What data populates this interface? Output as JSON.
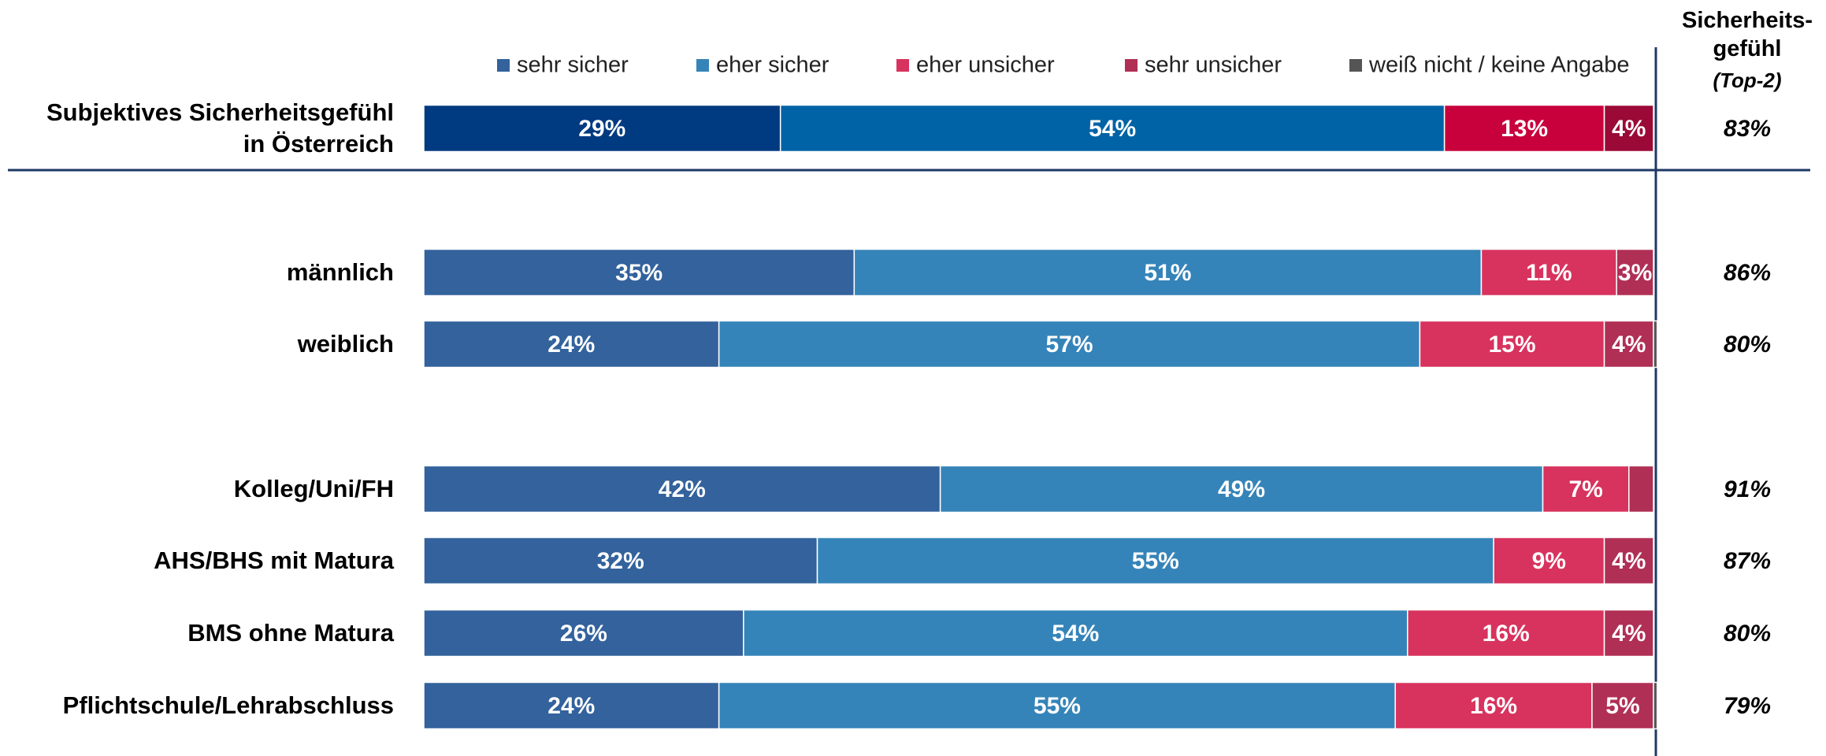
{
  "chart_data": {
    "type": "stacked-bar-horizontal",
    "categories": [
      "Subjektives Sicherheitsgefühl\nin Österreich",
      "männlich",
      "weiblich",
      "Kolleg/Uni/FH",
      "AHS/BHS mit Matura",
      "BMS ohne Matura",
      "Pflichtschule/Lehrabschluss"
    ],
    "xlim": [
      0,
      100
    ],
    "series": [
      {
        "name": "sehr sicher",
        "color": "#33629c",
        "first_row_color": "#003a80",
        "values": [
          29,
          35,
          24,
          42,
          32,
          26,
          24
        ],
        "value_labels": [
          "29%",
          "35%",
          "24%",
          "42%",
          "32%",
          "26%",
          "24%"
        ]
      },
      {
        "name": "eher sicher",
        "color": "#3584b9",
        "first_row_color": "#0063a6",
        "values": [
          54,
          51,
          57,
          49,
          55,
          54,
          55
        ],
        "value_labels": [
          "54%",
          "51%",
          "57%",
          "49%",
          "55%",
          "54%",
          "55%"
        ]
      },
      {
        "name": "eher unsicher",
        "color": "#d7335e",
        "first_row_color": "#c8003c",
        "values": [
          13,
          11,
          15,
          7,
          9,
          16,
          16
        ],
        "value_labels": [
          "13%",
          "11%",
          "15%",
          "7%",
          "9%",
          "16%",
          "16%"
        ]
      },
      {
        "name": "sehr unsicher",
        "color": "#b02f55",
        "first_row_color": "#9b0a36",
        "values": [
          4,
          3,
          4,
          2,
          4,
          4,
          5
        ],
        "value_labels": [
          "4%",
          "3%",
          "4%",
          null,
          "4%",
          "4%",
          "5%"
        ]
      },
      {
        "name": "weiß nicht / keine Angabe",
        "color": "#555555",
        "first_row_color": "#555555",
        "values": [
          0,
          0,
          0.3,
          0,
          0,
          0,
          0.3
        ],
        "value_labels": [
          null,
          null,
          null,
          null,
          null,
          null,
          null
        ]
      }
    ],
    "top2": {
      "title": "Sicherheits-\ngefühl",
      "subtitle": "(Top-2)",
      "values": [
        83,
        86,
        80,
        91,
        87,
        80,
        79
      ],
      "value_labels": [
        "83%",
        "86%",
        "80%",
        "91%",
        "87%",
        "80%",
        "79%"
      ]
    }
  }
}
